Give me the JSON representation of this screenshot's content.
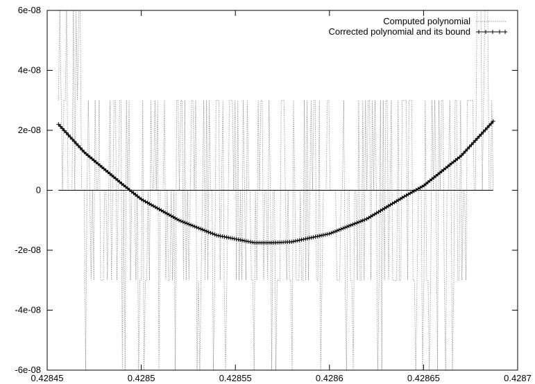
{
  "chart_data": {
    "type": "line",
    "title": "",
    "xlabel": "",
    "ylabel": "",
    "xlim": [
      0.42845,
      0.4287
    ],
    "ylim": [
      -6e-08,
      6e-08
    ],
    "grid": false,
    "legend_placement": "top-right",
    "x_ticks": [
      "0.42845",
      "0.4285",
      "0.42855",
      "0.4286",
      "0.42865",
      "0.4287"
    ],
    "x_tick_values": [
      0.42845,
      0.4285,
      0.42855,
      0.4286,
      0.42865,
      0.4287
    ],
    "y_ticks": [
      "-6e-08",
      "-4e-08",
      "-2e-08",
      "0",
      "2e-08",
      "4e-08",
      "6e-08"
    ],
    "y_tick_values": [
      -6e-08,
      -4e-08,
      -2e-08,
      0,
      2e-08,
      4e-08,
      6e-08
    ],
    "series": [
      {
        "name": "Computed polynomial",
        "style": "dotted",
        "color": "#808080",
        "levels": [
          -6e-08,
          -3e-08,
          0,
          3e-08,
          6e-08
        ],
        "x_range": [
          0.428456,
          0.428687
        ]
      },
      {
        "name": "Corrected polynomial and its bound",
        "style": "line-with-plus-markers",
        "color": "#000000",
        "x": [
          0.428456,
          0.42847,
          0.42849,
          0.4285,
          0.42852,
          0.42854,
          0.42856,
          0.42857,
          0.42858,
          0.4286,
          0.42862,
          0.42864,
          0.42865,
          0.42867,
          0.428687
        ],
        "y": [
          2.2e-08,
          1.25e-08,
          2e-09,
          -3e-09,
          -1e-08,
          -1.5e-08,
          -1.75e-08,
          -1.75e-08,
          -1.72e-08,
          -1.45e-08,
          -9.5e-09,
          -2e-09,
          1.5e-09,
          1.15e-08,
          2.3e-08
        ]
      },
      {
        "name": "",
        "style": "solid",
        "color": "#000000",
        "x": [
          0.428456,
          0.428687
        ],
        "y": [
          0,
          0
        ]
      }
    ]
  }
}
